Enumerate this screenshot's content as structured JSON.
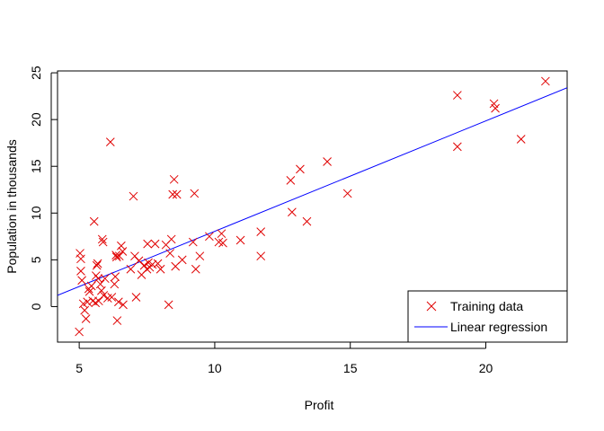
{
  "chart_data": {
    "type": "scatter",
    "xlabel": "Profit",
    "ylabel": "Population in thousands",
    "xlim": [
      4.2,
      23.0
    ],
    "ylim": [
      -3.8,
      25.2
    ],
    "x_ticks": [
      5,
      10,
      15,
      20
    ],
    "y_ticks": [
      0,
      5,
      10,
      15,
      20,
      25
    ],
    "x_tick_labels": [
      "5",
      "10",
      "15",
      "20"
    ],
    "y_tick_labels": [
      "0",
      "5",
      "10",
      "15",
      "20",
      "25"
    ],
    "grid": false,
    "legend_position": "bottom-right",
    "series": [
      {
        "name": "Training data",
        "kind": "points",
        "marker": "x",
        "color": "#e00000",
        "points": [
          [
            5.0,
            -2.7
          ],
          [
            5.03,
            5.7
          ],
          [
            5.06,
            5.1
          ],
          [
            5.06,
            3.8
          ],
          [
            5.1,
            2.8
          ],
          [
            5.15,
            0.3
          ],
          [
            5.2,
            -0.4
          ],
          [
            5.25,
            -1.3
          ],
          [
            5.3,
            0.5
          ],
          [
            5.35,
            1.9
          ],
          [
            5.38,
            1.6
          ],
          [
            5.45,
            2.2
          ],
          [
            5.5,
            0.6
          ],
          [
            5.55,
            9.1
          ],
          [
            5.6,
            0.4
          ],
          [
            5.62,
            3.3
          ],
          [
            5.65,
            4.4
          ],
          [
            5.68,
            4.6
          ],
          [
            5.7,
            3.0
          ],
          [
            5.72,
            0.6
          ],
          [
            5.78,
            2.4
          ],
          [
            5.82,
            1.7
          ],
          [
            5.85,
            7.2
          ],
          [
            5.88,
            6.9
          ],
          [
            5.9,
            1.2
          ],
          [
            5.95,
            3.0
          ],
          [
            6.05,
            0.9
          ],
          [
            6.15,
            17.6
          ],
          [
            6.2,
            1.0
          ],
          [
            6.3,
            2.4
          ],
          [
            6.33,
            3.2
          ],
          [
            6.36,
            5.5
          ],
          [
            6.38,
            5.3
          ],
          [
            6.4,
            -1.5
          ],
          [
            6.45,
            0.5
          ],
          [
            6.48,
            5.4
          ],
          [
            6.55,
            6.5
          ],
          [
            6.6,
            5.9
          ],
          [
            6.62,
            0.2
          ],
          [
            6.9,
            4.0
          ],
          [
            7.0,
            11.8
          ],
          [
            7.05,
            5.4
          ],
          [
            7.1,
            1.0
          ],
          [
            7.2,
            4.9
          ],
          [
            7.3,
            3.4
          ],
          [
            7.4,
            4.4
          ],
          [
            7.5,
            4.0
          ],
          [
            7.52,
            6.7
          ],
          [
            7.55,
            4.7
          ],
          [
            7.6,
            4.2
          ],
          [
            7.7,
            4.5
          ],
          [
            7.8,
            6.7
          ],
          [
            7.9,
            4.6
          ],
          [
            8.0,
            4.0
          ],
          [
            8.2,
            6.6
          ],
          [
            8.3,
            0.2
          ],
          [
            8.35,
            5.7
          ],
          [
            8.4,
            7.2
          ],
          [
            8.45,
            12.0
          ],
          [
            8.5,
            13.6
          ],
          [
            8.55,
            4.3
          ],
          [
            8.6,
            12.0
          ],
          [
            8.8,
            5.0
          ],
          [
            9.2,
            6.9
          ],
          [
            9.25,
            12.1
          ],
          [
            9.3,
            4.0
          ],
          [
            9.45,
            5.4
          ],
          [
            9.8,
            7.5
          ],
          [
            10.15,
            6.9
          ],
          [
            10.25,
            7.8
          ],
          [
            10.3,
            6.8
          ],
          [
            10.95,
            7.1
          ],
          [
            11.7,
            8.0
          ],
          [
            11.7,
            5.4
          ],
          [
            12.8,
            13.5
          ],
          [
            12.85,
            10.1
          ],
          [
            13.15,
            14.7
          ],
          [
            13.4,
            9.1
          ],
          [
            14.15,
            15.5
          ],
          [
            14.9,
            12.1
          ],
          [
            18.95,
            22.6
          ],
          [
            18.95,
            17.1
          ],
          [
            20.3,
            21.7
          ],
          [
            20.35,
            21.2
          ],
          [
            21.3,
            17.9
          ],
          [
            22.2,
            24.1
          ]
        ]
      },
      {
        "name": "Linear regression",
        "kind": "line",
        "color": "#0000ff",
        "line": {
          "x": [
            4.2,
            23.0
          ],
          "y": [
            1.2,
            23.4
          ]
        }
      }
    ]
  }
}
